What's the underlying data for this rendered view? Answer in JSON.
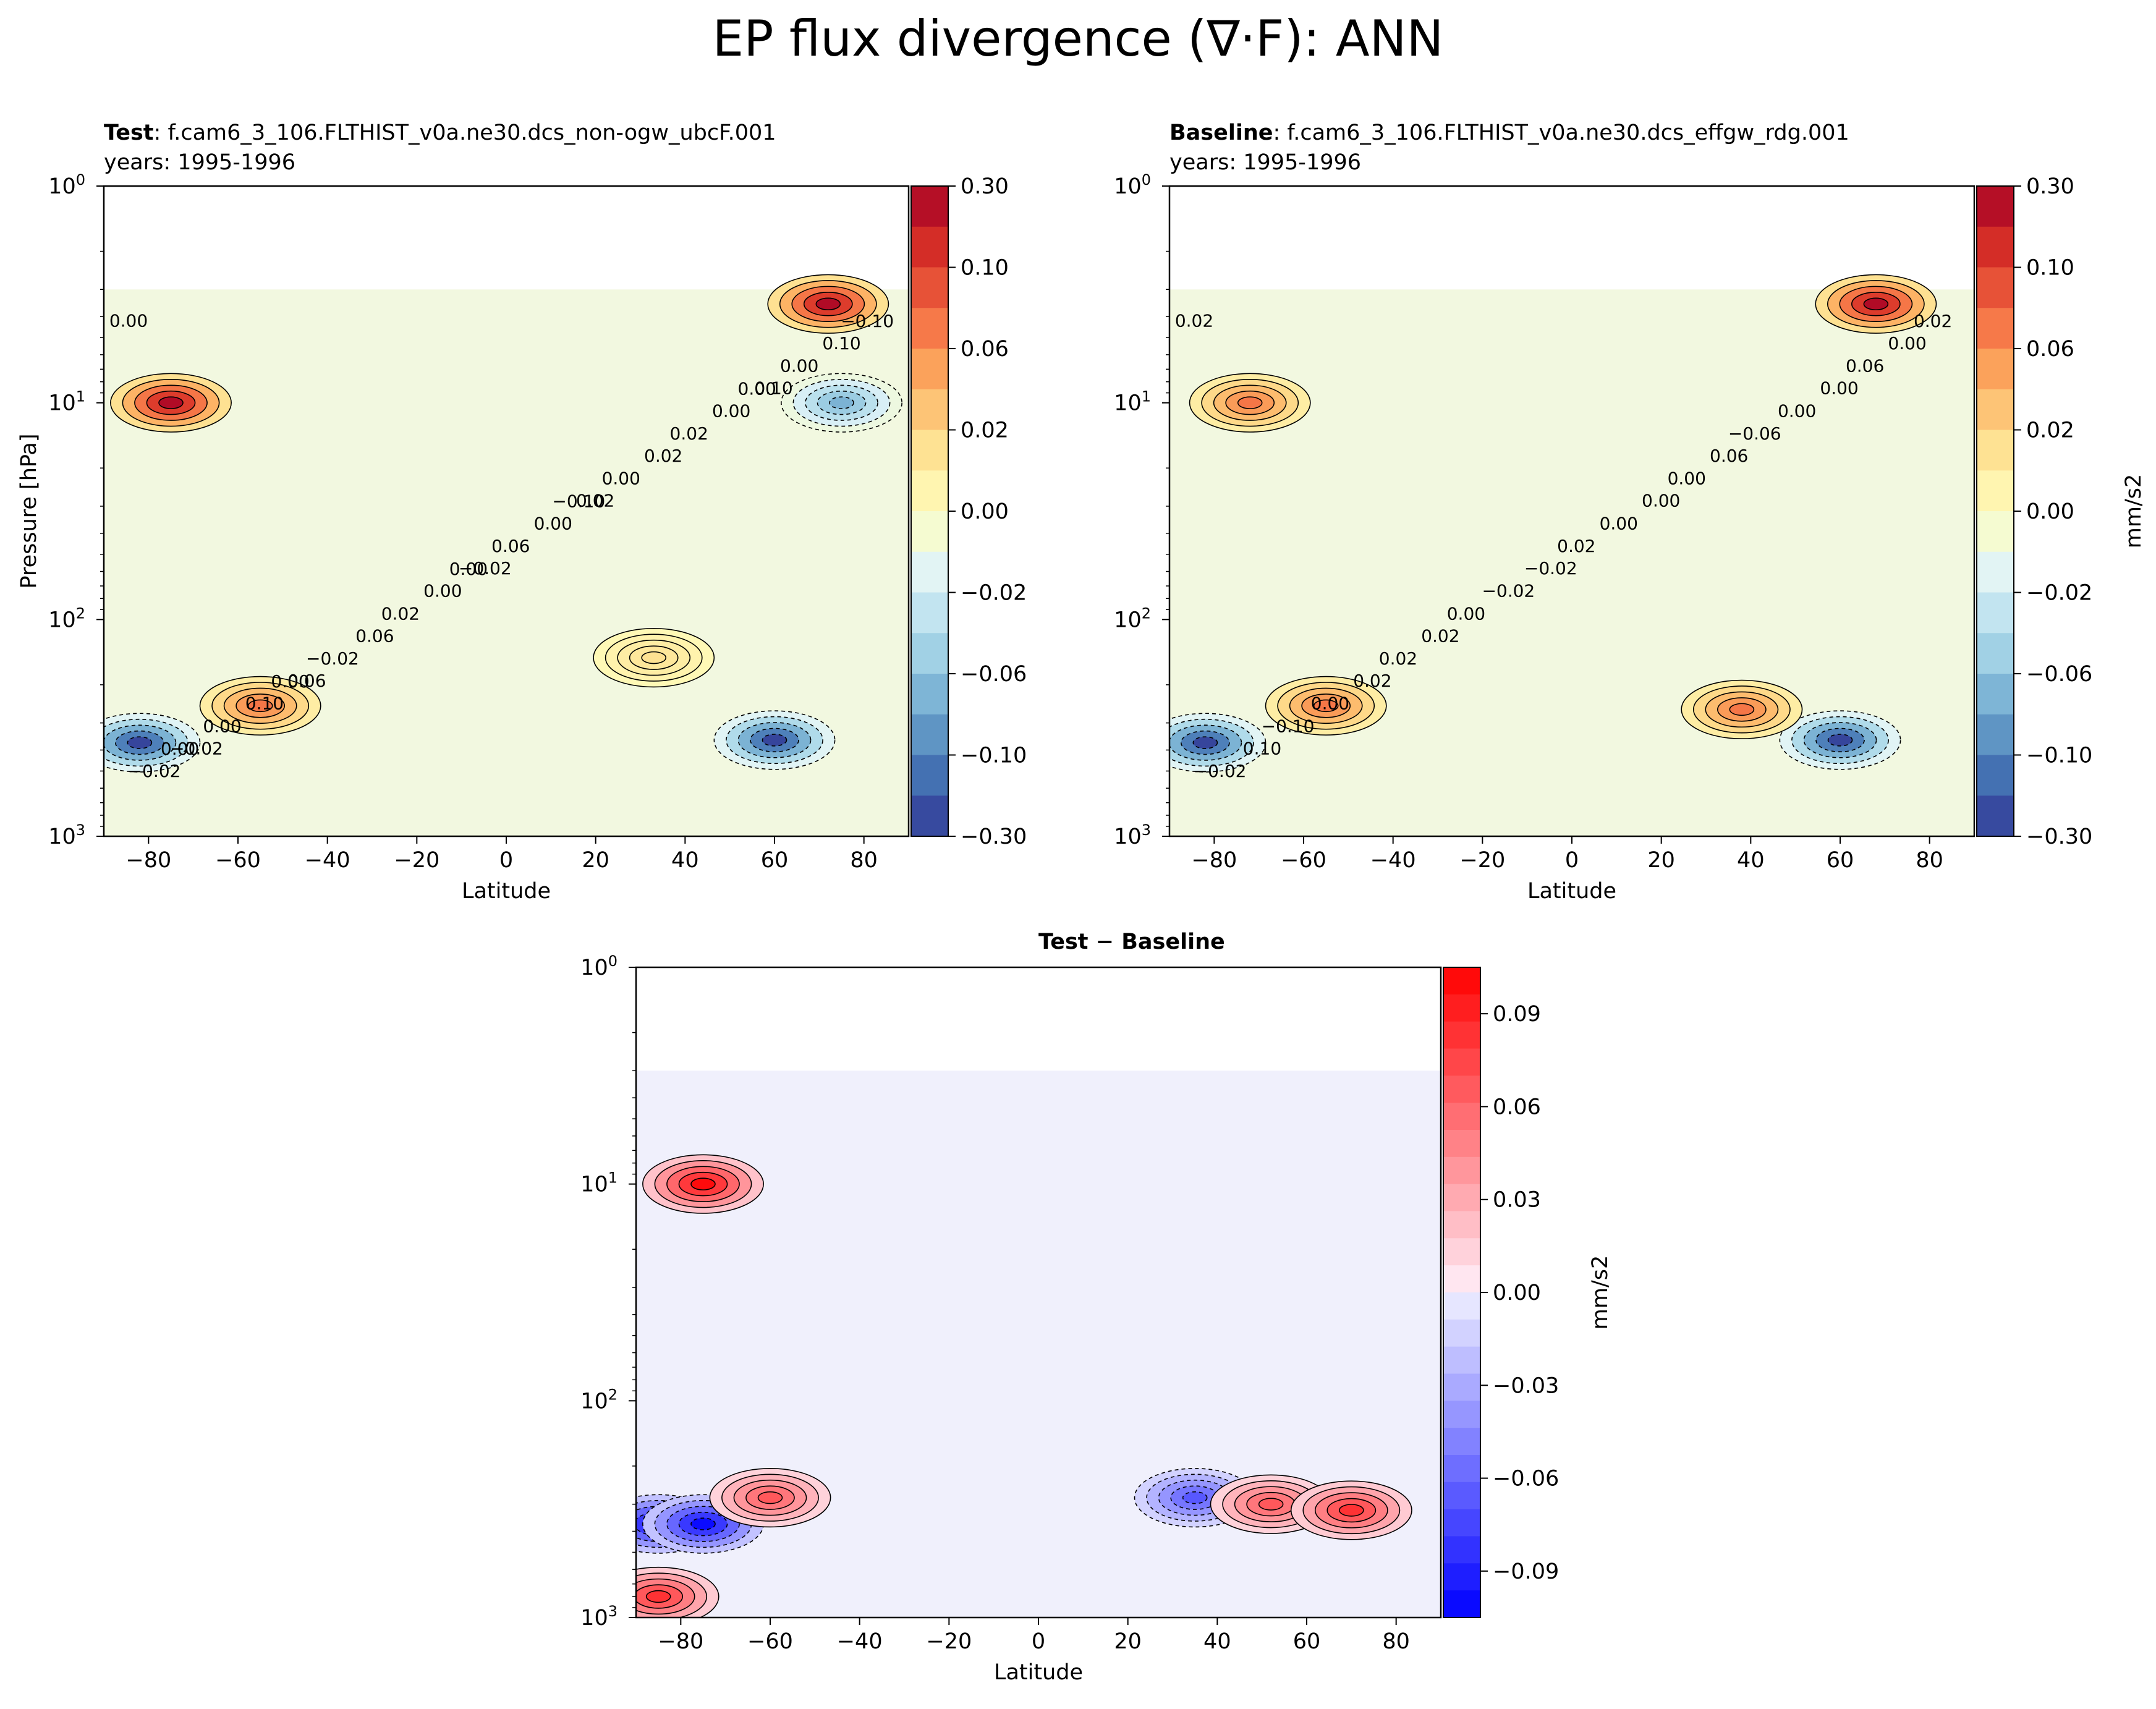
{
  "figure": {
    "title": "EP flux divergence (∇·F): ANN"
  },
  "chart_data": [
    {
      "type": "heatmap",
      "id": "test",
      "title_bold": "Test",
      "title_rest": ": f.cam6_3_106.FLTHIST_v0a.ne30.dcs_non-ogw_ubcF.001",
      "subtitle": "years: 1995-1996",
      "xlabel": "Latitude",
      "ylabel": "Pressure [hPa]",
      "xlim": [
        -90,
        90
      ],
      "ylim": [
        1,
        1000
      ],
      "yscale": "log",
      "x_ticks": [
        "−80",
        "−60",
        "−40",
        "−20",
        "0",
        "20",
        "40",
        "60",
        "80"
      ],
      "y_ticks": [
        "10^0",
        "10^1",
        "10^2",
        "10^3"
      ],
      "colormap": "RdYlBu_r",
      "colorbar_ticks": [
        "0.30",
        "0.10",
        "0.06",
        "0.02",
        "0.00",
        "−0.02",
        "−0.06",
        "−0.10",
        "−0.30"
      ],
      "colorbar_label": "",
      "contour_labels": [
        "0.00",
        "0.02",
        "0.06",
        "0.10",
        "−0.02",
        "−0.02",
        "0.02",
        "0.06",
        "0.10",
        "0.00",
        "0.10",
        "0.00",
        "0.00",
        "−0.02",
        "0.00",
        "−0.02",
        "0.00",
        "0.06",
        "0.00",
        "0.02",
        "0.02",
        "−0.10",
        "−0.10",
        "0.00",
        "0.00",
        "0.00",
        "0.00"
      ],
      "features": [
        {
          "lat": -75,
          "p": 10,
          "value": 0.1
        },
        {
          "lat": 72,
          "p": 3.5,
          "value": 0.1
        },
        {
          "lat": -82,
          "p": 370,
          "value": -0.1
        },
        {
          "lat": 60,
          "p": 360,
          "value": -0.1
        },
        {
          "lat": -55,
          "p": 250,
          "value": 0.06
        },
        {
          "lat": 33,
          "p": 150,
          "value": 0.02
        },
        {
          "lat": 75,
          "p": 10,
          "value": -0.06
        }
      ]
    },
    {
      "type": "heatmap",
      "id": "baseline",
      "title_bold": "Baseline",
      "title_rest": ": f.cam6_3_106.FLTHIST_v0a.ne30.dcs_effgw_rdg.001",
      "subtitle": "years: 1995-1996",
      "xlabel": "Latitude",
      "ylabel": "",
      "xlim": [
        -90,
        90
      ],
      "ylim": [
        1,
        1000
      ],
      "yscale": "log",
      "x_ticks": [
        "−80",
        "−60",
        "−40",
        "−20",
        "0",
        "20",
        "40",
        "60",
        "80"
      ],
      "y_ticks": [
        "10^0",
        "10^1",
        "10^2",
        "10^3"
      ],
      "colormap": "RdYlBu_r",
      "colorbar_ticks": [
        "0.30",
        "0.10",
        "0.06",
        "0.02",
        "0.00",
        "−0.02",
        "−0.06",
        "−0.10",
        "−0.30"
      ],
      "colorbar_label": "mm/s2",
      "contour_labels": [
        "0.02",
        "0.00",
        "0.02",
        "0.00",
        "−0.02",
        "0.10",
        "0.06",
        "0.02",
        "0.00",
        "0.00",
        "0.00",
        "0.00",
        "−0.02",
        "−0.02",
        "0.00",
        "0.02",
        "0.06",
        "0.02",
        "−0.10",
        "−0.06",
        "0.00",
        "0.02"
      ],
      "features": [
        {
          "lat": -72,
          "p": 10,
          "value": 0.06
        },
        {
          "lat": 68,
          "p": 3.5,
          "value": 0.1
        },
        {
          "lat": -82,
          "p": 370,
          "value": -0.1
        },
        {
          "lat": 60,
          "p": 360,
          "value": -0.1
        },
        {
          "lat": -55,
          "p": 250,
          "value": 0.06
        },
        {
          "lat": 38,
          "p": 260,
          "value": 0.06
        }
      ]
    },
    {
      "type": "heatmap",
      "id": "diff",
      "title_bold": "Test − Baseline",
      "title_rest": "",
      "subtitle": "",
      "xlabel": "Latitude",
      "ylabel": "",
      "xlim": [
        -90,
        90
      ],
      "ylim": [
        1,
        1000
      ],
      "yscale": "log",
      "x_ticks": [
        "−80",
        "−60",
        "−40",
        "−20",
        "0",
        "20",
        "40",
        "60",
        "80"
      ],
      "y_ticks": [
        "10^0",
        "10^1",
        "10^2",
        "10^3"
      ],
      "colormap": "bwr",
      "colorbar_ticks": [
        "0.09",
        "0.06",
        "0.03",
        "0.00",
        "−0.03",
        "−0.06",
        "−0.09"
      ],
      "colorbar_label": "mm/s2",
      "contour_labels": [],
      "features": [
        {
          "lat": -75,
          "p": 10,
          "value": 0.06
        },
        {
          "lat": -85,
          "p": 370,
          "value": -0.06
        },
        {
          "lat": -75,
          "p": 370,
          "value": -0.06
        },
        {
          "lat": -60,
          "p": 280,
          "value": 0.04
        },
        {
          "lat": 35,
          "p": 280,
          "value": -0.04
        },
        {
          "lat": 52,
          "p": 300,
          "value": 0.04
        },
        {
          "lat": 70,
          "p": 320,
          "value": 0.05
        },
        {
          "lat": -85,
          "p": 800,
          "value": 0.05
        }
      ]
    }
  ]
}
